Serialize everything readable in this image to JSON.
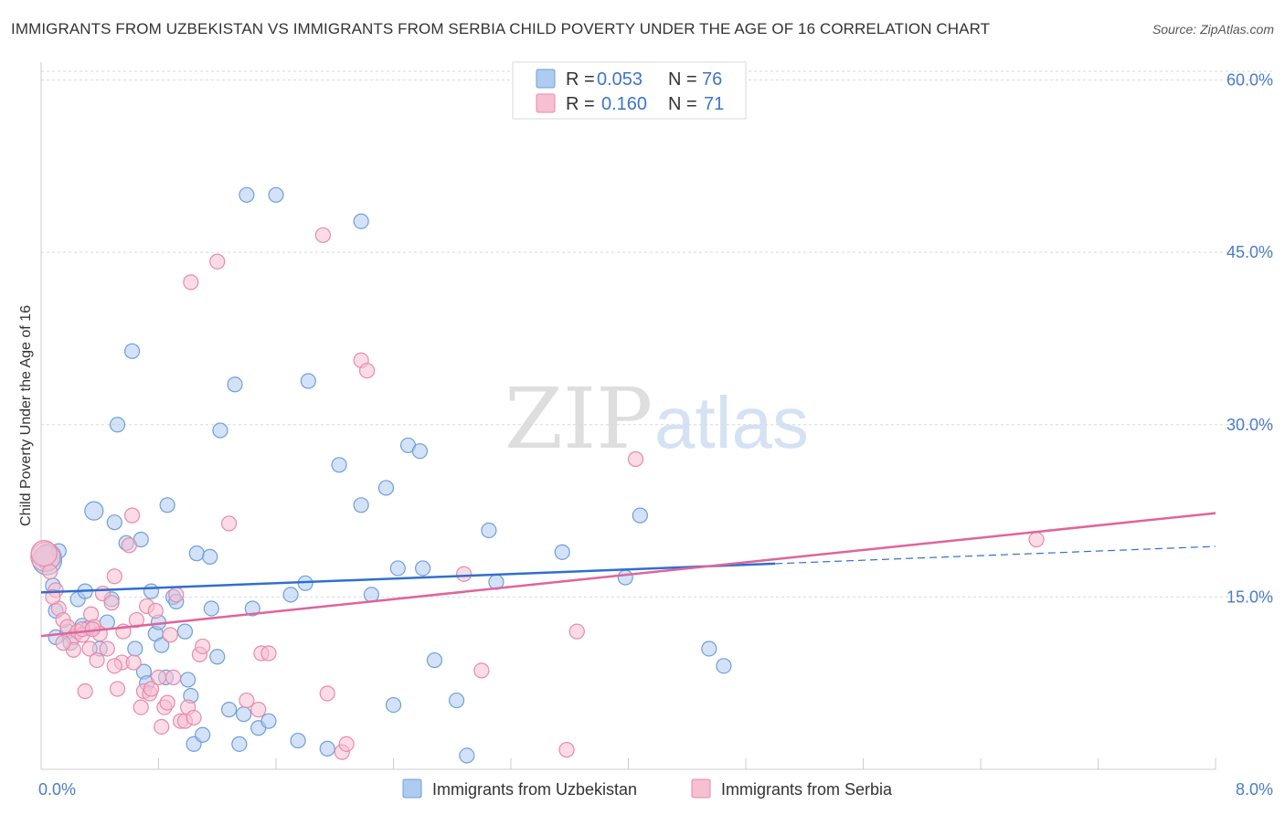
{
  "title": "IMMIGRANTS FROM UZBEKISTAN VS IMMIGRANTS FROM SERBIA CHILD POVERTY UNDER THE AGE OF 16 CORRELATION CHART",
  "source": "Source: ZipAtlas.com",
  "watermark": {
    "zip": "ZIP",
    "atlas": "atlas"
  },
  "colors": {
    "uzbekistan_fill": "#aecbf0",
    "uzbekistan_stroke": "#6e9fd9",
    "uzbekistan_line": "#2f6fcf",
    "serbia_fill": "#f7bfd2",
    "serbia_stroke": "#e78aab",
    "serbia_line": "#e0649a",
    "axis_tick": "#4a7cc9",
    "grid": "#d9d9d9"
  },
  "legend": {
    "rows": [
      {
        "r_label": "R = ",
        "r_value": "0.053",
        "n_label": "N = ",
        "n_value": "76"
      },
      {
        "r_label": "R = ",
        "r_value": "0.160",
        "n_label": "N = ",
        "n_value": "71"
      }
    ]
  },
  "chart_data": {
    "type": "scatter",
    "title": "IMMIGRANTS FROM UZBEKISTAN VS IMMIGRANTS FROM SERBIA CHILD POVERTY UNDER THE AGE OF 16 CORRELATION CHART",
    "xlabel": "",
    "ylabel": "Child Poverty Under the Age of 16",
    "xlim": [
      0,
      8
    ],
    "ylim": [
      0,
      61
    ],
    "x_tick_labels": [
      "0.0%",
      "8.0%"
    ],
    "y_ticks": [
      15,
      30,
      45,
      60
    ],
    "y_tick_labels": [
      "15.0%",
      "30.0%",
      "45.0%",
      "60.0%"
    ],
    "grid": true,
    "series": [
      {
        "name": "Immigrants from Uzbekistan",
        "R": 0.053,
        "N": 76,
        "trend": {
          "x0": 0,
          "y0": 15.4,
          "x1": 5.0,
          "y1": 17.9,
          "dash_x1": 8.0,
          "dash_y1": 19.4
        },
        "points": [
          [
            0.05,
            18.5
          ],
          [
            0.08,
            16.0
          ],
          [
            0.1,
            13.8
          ],
          [
            0.12,
            19.0
          ],
          [
            0.1,
            11.5
          ],
          [
            0.18,
            12.0
          ],
          [
            0.2,
            11.0
          ],
          [
            0.25,
            14.8
          ],
          [
            0.28,
            12.5
          ],
          [
            0.3,
            15.5
          ],
          [
            0.32,
            12.3
          ],
          [
            0.36,
            22.5
          ],
          [
            0.4,
            10.5
          ],
          [
            0.45,
            12.8
          ],
          [
            0.48,
            14.8
          ],
          [
            0.5,
            21.5
          ],
          [
            0.52,
            30.0
          ],
          [
            0.58,
            19.7
          ],
          [
            0.62,
            36.4
          ],
          [
            0.64,
            10.5
          ],
          [
            0.68,
            20.0
          ],
          [
            0.7,
            8.5
          ],
          [
            0.72,
            7.5
          ],
          [
            0.75,
            15.5
          ],
          [
            0.78,
            11.8
          ],
          [
            0.8,
            12.8
          ],
          [
            0.82,
            10.8
          ],
          [
            0.85,
            8.0
          ],
          [
            0.86,
            23.0
          ],
          [
            0.9,
            15.0
          ],
          [
            0.92,
            14.6
          ],
          [
            0.98,
            12.0
          ],
          [
            1.0,
            7.8
          ],
          [
            1.02,
            6.4
          ],
          [
            1.04,
            2.2
          ],
          [
            1.06,
            18.8
          ],
          [
            1.1,
            3.0
          ],
          [
            1.15,
            18.5
          ],
          [
            1.16,
            14.0
          ],
          [
            1.2,
            9.8
          ],
          [
            1.22,
            29.5
          ],
          [
            1.28,
            5.2
          ],
          [
            1.32,
            33.5
          ],
          [
            1.35,
            2.2
          ],
          [
            1.38,
            4.8
          ],
          [
            1.4,
            50.0
          ],
          [
            1.44,
            14.0
          ],
          [
            1.48,
            3.6
          ],
          [
            1.55,
            4.2
          ],
          [
            1.6,
            50.0
          ],
          [
            1.7,
            15.2
          ],
          [
            1.75,
            2.5
          ],
          [
            1.8,
            16.2
          ],
          [
            1.82,
            33.8
          ],
          [
            1.95,
            1.8
          ],
          [
            2.03,
            26.5
          ],
          [
            2.18,
            47.7
          ],
          [
            2.18,
            23.0
          ],
          [
            2.25,
            15.2
          ],
          [
            2.35,
            24.5
          ],
          [
            2.4,
            5.6
          ],
          [
            2.43,
            17.5
          ],
          [
            2.5,
            28.2
          ],
          [
            2.58,
            27.7
          ],
          [
            2.6,
            17.5
          ],
          [
            2.68,
            9.5
          ],
          [
            2.83,
            6.0
          ],
          [
            2.9,
            1.2
          ],
          [
            3.05,
            20.8
          ],
          [
            3.1,
            16.3
          ],
          [
            3.55,
            18.9
          ],
          [
            3.98,
            16.7
          ],
          [
            4.08,
            22.1
          ],
          [
            4.55,
            10.5
          ],
          [
            4.65,
            9.0
          ],
          [
            0.04,
            18.2
          ]
        ]
      },
      {
        "name": "Immigrants from Serbia",
        "R": 0.16,
        "N": 71,
        "trend": {
          "x0": 0,
          "y0": 11.6,
          "x1": 8.0,
          "y1": 22.3
        },
        "points": [
          [
            0.03,
            18.5
          ],
          [
            0.06,
            17.2
          ],
          [
            0.1,
            15.6
          ],
          [
            0.12,
            14.0
          ],
          [
            0.15,
            13.0
          ],
          [
            0.18,
            12.4
          ],
          [
            0.22,
            11.5
          ],
          [
            0.22,
            10.4
          ],
          [
            0.25,
            12.0
          ],
          [
            0.28,
            11.7
          ],
          [
            0.3,
            6.8
          ],
          [
            0.33,
            10.5
          ],
          [
            0.34,
            13.5
          ],
          [
            0.36,
            12.4
          ],
          [
            0.38,
            9.5
          ],
          [
            0.4,
            11.8
          ],
          [
            0.42,
            15.3
          ],
          [
            0.45,
            10.5
          ],
          [
            0.48,
            14.5
          ],
          [
            0.5,
            16.8
          ],
          [
            0.52,
            7.0
          ],
          [
            0.55,
            9.3
          ],
          [
            0.56,
            12.0
          ],
          [
            0.6,
            19.5
          ],
          [
            0.62,
            22.1
          ],
          [
            0.63,
            9.3
          ],
          [
            0.65,
            13.0
          ],
          [
            0.68,
            5.4
          ],
          [
            0.7,
            6.8
          ],
          [
            0.72,
            14.2
          ],
          [
            0.74,
            6.6
          ],
          [
            0.75,
            7.0
          ],
          [
            0.78,
            13.8
          ],
          [
            0.8,
            8.0
          ],
          [
            0.82,
            3.7
          ],
          [
            0.84,
            5.4
          ],
          [
            0.86,
            5.8
          ],
          [
            0.88,
            11.7
          ],
          [
            0.9,
            8.0
          ],
          [
            0.92,
            15.2
          ],
          [
            0.95,
            4.2
          ],
          [
            0.98,
            4.2
          ],
          [
            1.0,
            5.4
          ],
          [
            1.02,
            42.4
          ],
          [
            1.04,
            4.5
          ],
          [
            1.08,
            10.0
          ],
          [
            1.1,
            10.7
          ],
          [
            1.2,
            44.2
          ],
          [
            1.28,
            21.4
          ],
          [
            1.4,
            6.0
          ],
          [
            1.48,
            5.2
          ],
          [
            1.5,
            10.1
          ],
          [
            1.55,
            10.1
          ],
          [
            1.92,
            46.5
          ],
          [
            1.95,
            6.6
          ],
          [
            2.05,
            1.5
          ],
          [
            2.08,
            2.2
          ],
          [
            2.18,
            35.6
          ],
          [
            2.22,
            34.7
          ],
          [
            2.88,
            17.0
          ],
          [
            3.0,
            8.6
          ],
          [
            3.58,
            1.7
          ],
          [
            3.65,
            12.0
          ],
          [
            4.05,
            27.0
          ],
          [
            6.78,
            20.0
          ],
          [
            0.02,
            18.8
          ],
          [
            0.08,
            15.0
          ],
          [
            0.15,
            11.0
          ],
          [
            0.28,
            12.2
          ],
          [
            0.35,
            12.2
          ],
          [
            0.5,
            9.0
          ]
        ]
      }
    ]
  }
}
